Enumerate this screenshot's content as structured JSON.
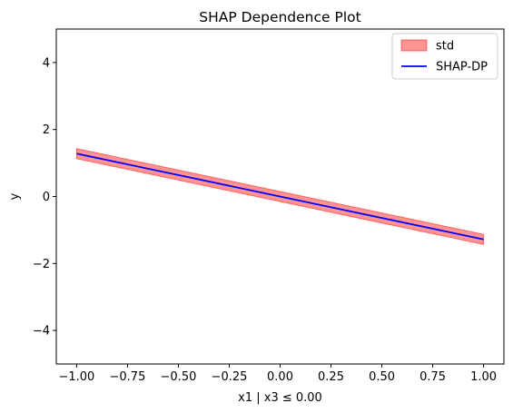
{
  "chart_data": {
    "type": "line",
    "title": "SHAP Dependence Plot",
    "xlabel": "x1 | x3 ≤ 0.00",
    "ylabel": "y",
    "xlim": [
      -1.1,
      1.1
    ],
    "ylim": [
      -5,
      5
    ],
    "x_ticks": [
      -1.0,
      -0.75,
      -0.5,
      -0.25,
      0.0,
      0.25,
      0.5,
      0.75,
      1.0
    ],
    "x_tick_labels": [
      "−1.00",
      "−0.75",
      "−0.50",
      "−0.25",
      "0.00",
      "0.25",
      "0.50",
      "0.75",
      "1.00"
    ],
    "y_ticks": [
      -4,
      -2,
      0,
      2,
      4
    ],
    "y_tick_labels": [
      "−4",
      "−2",
      "0",
      "2",
      "4"
    ],
    "grid": false,
    "legend_position": "top-right",
    "series": [
      {
        "name": "SHAP-DP",
        "kind": "line",
        "color": "#0000ff",
        "x": [
          -1.0,
          0.0,
          1.0
        ],
        "y": [
          1.28,
          0.0,
          -1.28
        ]
      },
      {
        "name": "std",
        "kind": "band",
        "color": "#ff0000",
        "opacity": 0.42,
        "x": [
          -1.0,
          0.0,
          1.0
        ],
        "y_lower": [
          1.13,
          -0.15,
          -1.43
        ],
        "y_upper": [
          1.43,
          0.15,
          -1.13
        ]
      }
    ]
  }
}
